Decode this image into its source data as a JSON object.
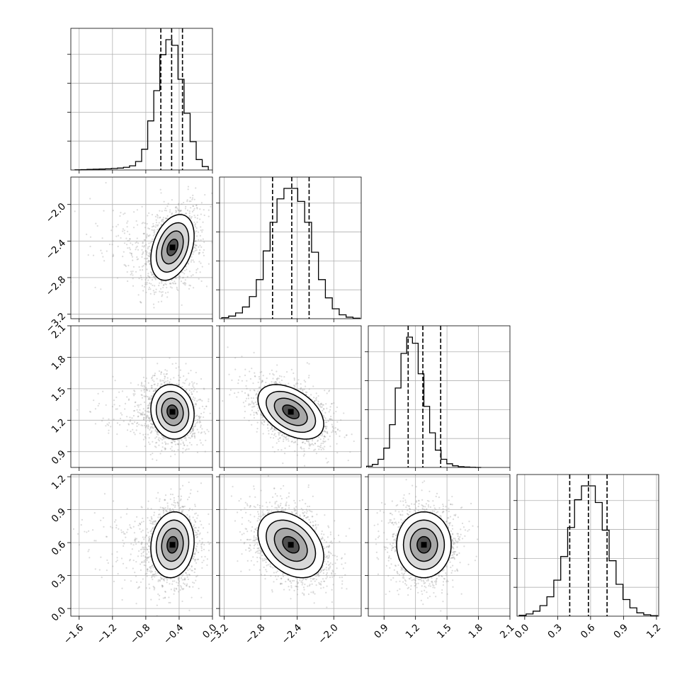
{
  "chart_data": {
    "type": "corner",
    "params": [
      {
        "mean": -0.48,
        "sd": 0.13,
        "skew_left": true,
        "quantiles": [
          -0.62,
          -0.49,
          -0.36
        ],
        "range": [
          -1.7,
          0.0
        ],
        "ticks": [
          -1.6,
          -1.2,
          -0.8,
          -0.4,
          0.0
        ],
        "tick_labels": [
          "−1.6",
          "−1.2",
          "−0.8",
          "−0.4",
          "0.0"
        ],
        "hist": [
          1,
          2,
          3,
          4,
          5,
          6,
          8,
          10,
          14,
          22,
          45,
          110,
          260,
          420,
          610,
          690,
          660,
          480,
          300,
          150,
          55,
          18
        ]
      },
      {
        "mean": -2.47,
        "sd": 0.18,
        "quantiles": [
          -2.67,
          -2.46,
          -2.27
        ],
        "range": [
          -3.25,
          -1.7
        ],
        "ticks": [
          -3.2,
          -2.8,
          -2.4,
          -2.0
        ],
        "tick_labels": [
          "−3.2",
          "−2.8",
          "−2.4",
          "−2.0"
        ],
        "hist": [
          4,
          10,
          22,
          45,
          85,
          150,
          260,
          370,
          460,
          500,
          500,
          450,
          370,
          255,
          150,
          80,
          38,
          15,
          6,
          2
        ]
      },
      {
        "mean": 1.28,
        "sd": 0.13,
        "quantiles": [
          1.13,
          1.27,
          1.44
        ],
        "range": [
          0.75,
          2.1
        ],
        "ticks": [
          0.9,
          1.2,
          1.5,
          1.8,
          2.1
        ],
        "tick_labels": [
          "0.9",
          "1.2",
          "1.5",
          "1.8",
          "2.1"
        ],
        "hist": [
          6,
          15,
          40,
          95,
          210,
          390,
          560,
          640,
          610,
          460,
          300,
          170,
          85,
          40,
          18,
          8,
          4,
          2,
          1,
          0
        ]
      },
      {
        "mean": 0.58,
        "sd": 0.15,
        "quantiles": [
          0.41,
          0.58,
          0.75
        ],
        "range": [
          -0.07,
          1.22
        ],
        "ticks": [
          0.0,
          0.3,
          0.6,
          0.9,
          1.2
        ],
        "tick_labels": [
          "0.0",
          "0.3",
          "0.6",
          "0.9",
          "1.2"
        ],
        "hist": [
          3,
          8,
          18,
          38,
          70,
          130,
          215,
          320,
          420,
          470,
          470,
          410,
          310,
          200,
          115,
          60,
          30,
          12,
          5,
          2
        ]
      }
    ],
    "correlations": [
      [
        1.0,
        0.35,
        -0.1,
        0.1
      ],
      [
        0.35,
        1.0,
        -0.45,
        -0.35
      ],
      [
        -0.1,
        -0.45,
        1.0,
        0.0
      ],
      [
        0.1,
        -0.35,
        0.0,
        1.0
      ]
    ],
    "contour_levels_sigma": [
      0.5,
      1.0,
      1.5,
      2.0
    ],
    "grid": true
  },
  "colors": {
    "points": "#999999",
    "lines": "#000000",
    "grid": "#b0b0b0"
  }
}
